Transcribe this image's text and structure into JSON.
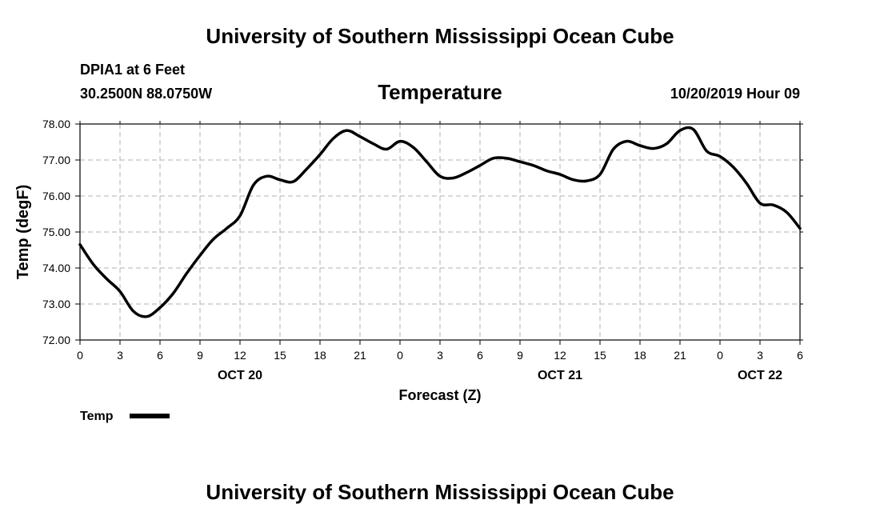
{
  "page": {
    "top_title": "University of Southern Mississippi Ocean Cube",
    "bottom_title": "University of Southern Mississippi Ocean Cube",
    "station": "DPIA1 at 6 Feet",
    "location": "30.2500N 88.0750W",
    "timestamp": "10/20/2019 Hour 09"
  },
  "colors": {
    "line": "#000000",
    "grid": "#b0b0b0",
    "background": "#ffffff"
  },
  "chart_data": {
    "type": "line",
    "title": "Temperature",
    "xlabel": "Forecast (Z)",
    "ylabel": "Temp (degF)",
    "xlim": [
      0,
      54
    ],
    "ylim": [
      72,
      78
    ],
    "y_ticks": [
      "72.00",
      "73.00",
      "74.00",
      "75.00",
      "76.00",
      "77.00",
      "78.00"
    ],
    "x_tick_labels": [
      "0",
      "3",
      "6",
      "9",
      "12",
      "15",
      "18",
      "21",
      "0",
      "3",
      "6",
      "9",
      "12",
      "15",
      "18",
      "21",
      "0",
      "3",
      "6"
    ],
    "date_labels": [
      {
        "label": "OCT 20",
        "at_hour": 12
      },
      {
        "label": "OCT 21",
        "at_hour": 36
      },
      {
        "label": "OCT 22",
        "at_hour": 51
      }
    ],
    "grid": true,
    "legend": {
      "position": "bottom-left",
      "entries": [
        "Temp"
      ]
    },
    "series": [
      {
        "name": "Temp",
        "x": [
          0,
          1,
          2,
          3,
          4,
          5,
          6,
          7,
          8,
          9,
          10,
          11,
          12,
          13,
          14,
          15,
          16,
          17,
          18,
          19,
          20,
          21,
          22,
          23,
          24,
          25,
          26,
          27,
          28,
          29,
          30,
          31,
          32,
          33,
          34,
          35,
          36,
          37,
          38,
          39,
          40,
          41,
          42,
          43,
          44,
          45,
          46,
          47,
          48,
          49,
          50,
          51,
          52,
          53,
          54
        ],
        "values": [
          74.65,
          74.1,
          73.7,
          73.35,
          72.8,
          72.65,
          72.9,
          73.3,
          73.85,
          74.35,
          74.8,
          75.1,
          75.45,
          76.3,
          76.55,
          76.45,
          76.4,
          76.75,
          77.15,
          77.6,
          77.82,
          77.65,
          77.45,
          77.3,
          77.52,
          77.35,
          76.95,
          76.55,
          76.5,
          76.65,
          76.85,
          77.05,
          77.05,
          76.95,
          76.85,
          76.7,
          76.6,
          76.45,
          76.42,
          76.6,
          77.3,
          77.52,
          77.4,
          77.32,
          77.45,
          77.82,
          77.85,
          77.25,
          77.1,
          76.8,
          76.35,
          75.8,
          75.75,
          75.55,
          75.1
        ]
      }
    ]
  }
}
